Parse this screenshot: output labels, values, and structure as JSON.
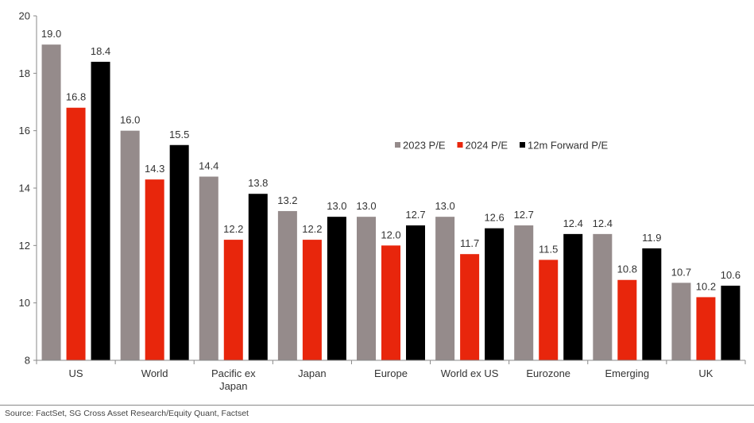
{
  "chart_data": {
    "type": "bar",
    "categories": [
      "US",
      "World",
      [
        "Pacific ex",
        "Japan"
      ],
      "Japan",
      "Europe",
      "World ex US",
      "Eurozone",
      "Emerging",
      "UK"
    ],
    "series": [
      {
        "name": "2023 P/E",
        "color": "#958b8b",
        "values": [
          19.0,
          16.0,
          14.4,
          13.2,
          13.0,
          13.0,
          12.7,
          12.4,
          10.7
        ],
        "labels": [
          "19.0",
          "16.0",
          "14.4",
          "13.2",
          "13.0",
          "13.0",
          "12.7",
          "12.4",
          "10.7"
        ]
      },
      {
        "name": "2024 P/E",
        "color": "#e8260c",
        "values": [
          16.8,
          14.3,
          12.2,
          12.2,
          12.0,
          11.7,
          11.5,
          10.8,
          10.2
        ],
        "labels": [
          "16.8",
          "14.3",
          "12.2",
          "12.2",
          "12.0",
          "11.7",
          "11.5",
          "10.8",
          "10.2"
        ]
      },
      {
        "name": "12m Forward P/E",
        "color": "#000000",
        "values": [
          18.4,
          15.5,
          13.8,
          13.0,
          12.7,
          12.6,
          12.4,
          11.9,
          10.6
        ],
        "labels": [
          "18.4",
          "15.5",
          "13.8",
          "13.0",
          "12.7",
          "12.6",
          "12.4",
          "11.9",
          "10.6"
        ]
      }
    ],
    "ylim": [
      8,
      20
    ],
    "yticks": [
      8,
      10,
      12,
      14,
      16,
      18,
      20
    ],
    "legend_position": "right-middle",
    "grid": false
  },
  "source": "Source: FactSet, SG Cross Asset Research/Equity Quant, Factset"
}
